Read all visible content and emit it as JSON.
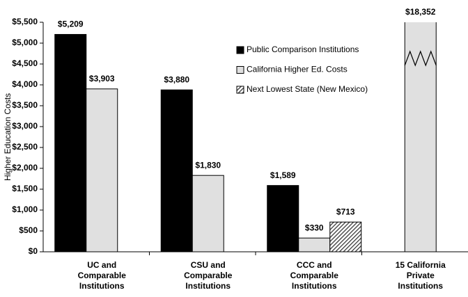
{
  "chart_data": {
    "type": "bar",
    "y_label": "Higher Education Costs",
    "categories": [
      [
        "UC and",
        "Comparable",
        "Institutions"
      ],
      [
        "CSU and",
        "Comparable",
        "Institutions"
      ],
      [
        "CCC and",
        "Comparable",
        "Institutions"
      ],
      [
        "15 California",
        "Private",
        "Institutions"
      ]
    ],
    "series": [
      {
        "name": "Public Comparison Institutions",
        "color": "#000000",
        "fill": "solid",
        "values": [
          5209,
          3880,
          1589,
          null
        ],
        "value_labels": [
          "$5,209",
          "$3,880",
          "$1,589",
          null
        ]
      },
      {
        "name": "California Higher Ed. Costs",
        "color": "#e0e0e0",
        "fill": "solid",
        "values": [
          3903,
          1830,
          330,
          18352
        ],
        "value_labels": [
          "$3,903",
          "$1,830",
          "$330",
          "$18,352"
        ]
      },
      {
        "name": "Next Lowest State (New Mexico)",
        "color": "#555555",
        "fill": "hatch",
        "values": [
          null,
          null,
          713,
          null
        ],
        "value_labels": [
          null,
          null,
          "$713",
          null
        ]
      }
    ],
    "ylim": [
      0,
      5500
    ],
    "yticks": [
      {
        "value": 0,
        "label": "$0"
      },
      {
        "value": 500,
        "label": "$500"
      },
      {
        "value": 1000,
        "label": "$1,000"
      },
      {
        "value": 1500,
        "label": "$1,500"
      },
      {
        "value": 2000,
        "label": "$2,000"
      },
      {
        "value": 2500,
        "label": "$2,500"
      },
      {
        "value": 3000,
        "label": "$3,000"
      },
      {
        "value": 3500,
        "label": "$3,500"
      },
      {
        "value": 4000,
        "label": "$4,000"
      },
      {
        "value": 4500,
        "label": "$4,500"
      },
      {
        "value": 5000,
        "label": "$5,000"
      },
      {
        "value": 5500,
        "label": "$5,500"
      }
    ],
    "legend": "upper-center"
  }
}
